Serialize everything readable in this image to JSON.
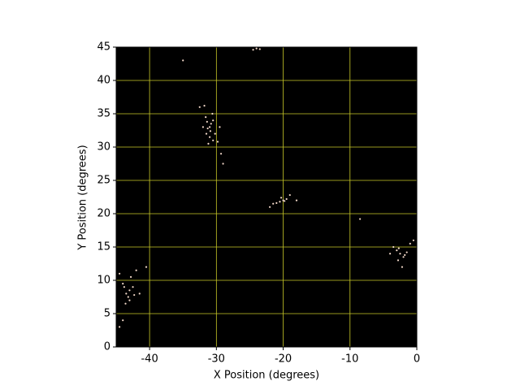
{
  "chart_data": {
    "type": "scatter",
    "x_label": "X Position (degrees)",
    "y_label": "Y Position (degrees)",
    "xlim": [
      -45,
      0
    ],
    "ylim": [
      0,
      45
    ],
    "xticks": [
      -40,
      -30,
      -20,
      -10,
      0
    ],
    "yticks": [
      0,
      5,
      10,
      15,
      20,
      25,
      30,
      35,
      40,
      45
    ],
    "grid": true,
    "grid_color": "#c8c828",
    "background": "#000000",
    "color": "#f2d8c8",
    "x": [
      -31,
      -30.8,
      -31.3,
      -30.5,
      -31.6,
      -30.2,
      -31,
      -29.8,
      -32.5,
      -31.8,
      -30.6,
      -31.4,
      -30.9,
      -32,
      -29.5,
      -31.2,
      -29.3,
      -29,
      -30.5,
      -31.5,
      -20,
      -20.5,
      -19.5,
      -21,
      -19,
      -20.3,
      -18,
      -21.5,
      -22,
      -19.8,
      -43,
      -43.5,
      -42.5,
      -43.2,
      -44,
      -42.8,
      -43.6,
      -41.5,
      -44.5,
      -42,
      -43,
      -44,
      -44.5,
      -40.5,
      -43.8,
      -42.3,
      -2.5,
      -2,
      -3,
      -1.5,
      -2.8,
      -3.5,
      -1,
      -2.2,
      -4,
      -0.5,
      -2.7,
      -1.8,
      -8.5,
      -35,
      -24,
      -23.5,
      -24.5
    ],
    "y": [
      33,
      33.5,
      32.8,
      34,
      34.5,
      32,
      31.5,
      30.8,
      36,
      36.2,
      35,
      33.8,
      32.4,
      33,
      33,
      30.5,
      29,
      27.5,
      31,
      32,
      22,
      21.8,
      22.2,
      21.6,
      22.8,
      22.4,
      22,
      21.5,
      21,
      21.9,
      8.5,
      8,
      9,
      7.5,
      9.5,
      10.5,
      6.5,
      8,
      11,
      11.5,
      7,
      4,
      3,
      12,
      9,
      7.8,
      14,
      13.5,
      14.5,
      14.2,
      13,
      15,
      15.5,
      12,
      14,
      16,
      14.8,
      13.8,
      19.2,
      43,
      44.8,
      44.7,
      44.6
    ]
  }
}
